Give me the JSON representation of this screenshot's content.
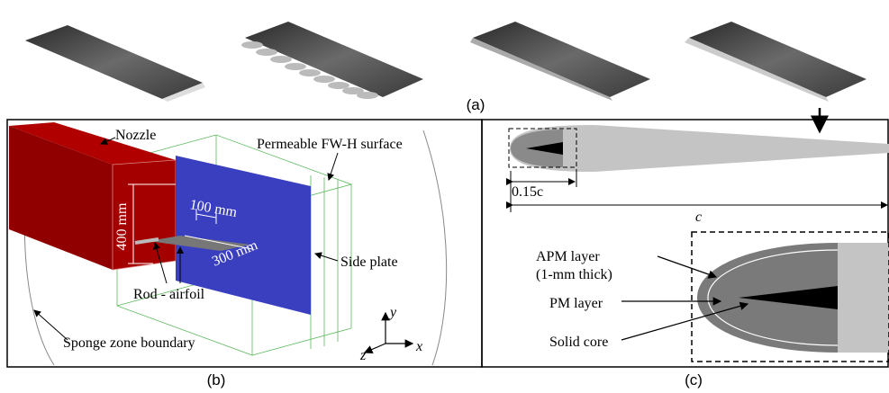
{
  "figure": {
    "panel_a": {
      "label": "(a)"
    },
    "panel_b": {
      "label": "(b)",
      "nozzle": "Nozzle",
      "fwh_surface": "Permeable FW-H surface",
      "dim_100": "100 mm",
      "dim_400": "400 mm",
      "dim_300": "300 mm",
      "side_plate": "Side plate",
      "rod_airfoil": "Rod - airfoil",
      "sponge": "Sponge zone boundary",
      "axes": {
        "y": "y",
        "z": "z",
        "x": "x"
      }
    },
    "panel_c": {
      "label": "(c)",
      "dim_small": "0.15c",
      "dim_chord": "c",
      "apm_layer": "APM layer",
      "apm_thickness": "(1-mm thick)",
      "pm_layer": "PM layer",
      "solid_core": "Solid core"
    }
  }
}
